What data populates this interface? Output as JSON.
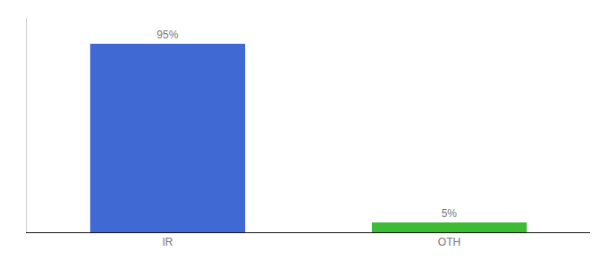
{
  "chart_data": {
    "type": "bar",
    "categories": [
      "IR",
      "OTH"
    ],
    "values": [
      95,
      5
    ],
    "value_labels": [
      "95%",
      "5%"
    ],
    "colors": [
      "#4169d4",
      "#3dbb35"
    ],
    "ylim": [
      0,
      108
    ],
    "grid": false,
    "data_labels": true,
    "tick_labels": "x"
  }
}
